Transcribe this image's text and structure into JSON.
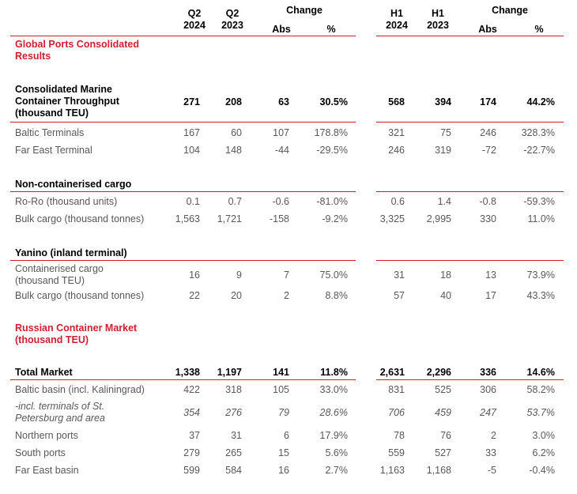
{
  "colors": {
    "accent": "#d0202e",
    "muted_text": "#595959"
  },
  "header": {
    "q2_2024": [
      "Q2",
      "2024"
    ],
    "q2_2023": [
      "Q2",
      "2023"
    ],
    "change_left": "Change",
    "abs_left": "Abs",
    "pct_left": "%",
    "h1_2024": [
      "H1",
      "2024"
    ],
    "h1_2023": [
      "H1",
      "2023"
    ],
    "change_right": "Change",
    "abs_right": "Abs",
    "pct_right": "%"
  },
  "sections": {
    "global_ports": [
      "Global Ports Consolidated",
      "Results"
    ],
    "marine_title": [
      "Consolidated Marine",
      "Container Throughput",
      "(thousand TEU)"
    ],
    "non_cont": "Non-containerised cargo",
    "yanino": "Yanino (inland terminal)",
    "russian_market": [
      "Russian Container Market",
      "(thousand TEU)"
    ]
  },
  "rows": {
    "marine_total": {
      "label": "",
      "v": [
        "271",
        "208",
        "63",
        "30.5%",
        "568",
        "394",
        "174",
        "44.2%"
      ]
    },
    "baltic_terminals": {
      "label": "Baltic Terminals",
      "v": [
        "167",
        "60",
        "107",
        "178.8%",
        "321",
        "75",
        "246",
        "328.3%"
      ]
    },
    "far_east_terminal": {
      "label": "Far East Terminal",
      "v": [
        "104",
        "148",
        "-44",
        "-29.5%",
        "246",
        "319",
        "-72",
        "-22.7%"
      ]
    },
    "roro": {
      "label": "Ro-Ro (thousand units)",
      "v": [
        "0.1",
        "0.7",
        "-0.6",
        "-81.0%",
        "0.6",
        "1.4",
        "-0.8",
        "-59.3%"
      ]
    },
    "bulk": {
      "label": "Bulk cargo (thousand tonnes)",
      "v": [
        "1,563",
        "1,721",
        "-158",
        "-9.2%",
        "3,325",
        "2,995",
        "330",
        "11.0%"
      ]
    },
    "yanino_cont": {
      "label": [
        "Containerised cargo",
        "(thousand TEU)"
      ],
      "v": [
        "16",
        "9",
        "7",
        "75.0%",
        "31",
        "18",
        "13",
        "73.9%"
      ]
    },
    "yanino_bulk": {
      "label": "Bulk cargo (thousand tonnes)",
      "v": [
        "22",
        "20",
        "2",
        "8.8%",
        "57",
        "40",
        "17",
        "43.3%"
      ]
    },
    "total_market": {
      "label": "Total Market",
      "v": [
        "1,338",
        "1,197",
        "141",
        "11.8%",
        "2,631",
        "2,296",
        "336",
        "14.6%"
      ]
    },
    "baltic_basin": {
      "label": "Baltic basin (incl. Kaliningrad)",
      "v": [
        "422",
        "318",
        "105",
        "33.0%",
        "831",
        "525",
        "306",
        "58.2%"
      ]
    },
    "spb": {
      "label": [
        "-incl. terminals of St.",
        "Petersburg and area"
      ],
      "v": [
        "354",
        "276",
        "79",
        "28.6%",
        "706",
        "459",
        "247",
        "53.7%"
      ]
    },
    "northern": {
      "label": "Northern ports",
      "v": [
        "37",
        "31",
        "6",
        "17.9%",
        "78",
        "76",
        "2",
        "3.0%"
      ]
    },
    "south": {
      "label": "South ports",
      "v": [
        "279",
        "265",
        "15",
        "5.6%",
        "559",
        "527",
        "33",
        "6.2%"
      ]
    },
    "far_east_basin": {
      "label": "Far East basin",
      "v": [
        "599",
        "584",
        "16",
        "2.7%",
        "1,163",
        "1,168",
        "-5",
        "-0.4%"
      ]
    }
  }
}
